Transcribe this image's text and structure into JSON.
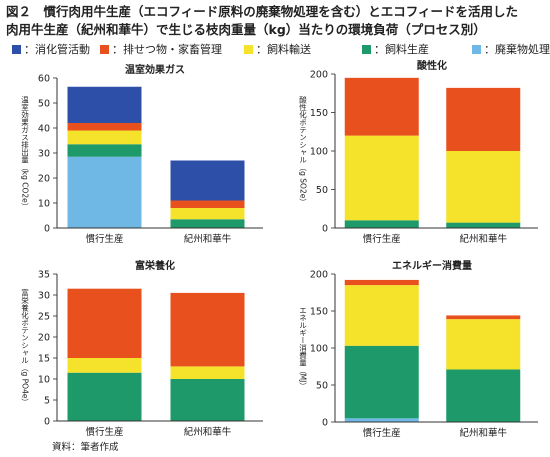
{
  "figure": {
    "title_line1": "図２　慣行肉用牛生産（エコフィード原料の廃棄物処理を含む）とエコフィードを活用した",
    "title_line2": "肉用牛生産（紀州和華牛）で生じる枝肉重量（kg）当たりの環境負荷（プロセス別）",
    "source": "資料：筆者作成"
  },
  "legend": [
    {
      "label": "：消化管活動",
      "color": "#2e4fa8"
    },
    {
      "label": "：排せつ物・家畜管理",
      "color": "#e8501e"
    },
    {
      "label": "：飼料輸送",
      "color": "#f5e22a"
    },
    {
      "label": "：飼料生産",
      "color": "#1e9a6a"
    },
    {
      "label": "：廃棄物処理",
      "color": "#6fb8e6"
    }
  ],
  "chart_data": [
    {
      "type": "bar",
      "stacked": true,
      "title": "温室効果ガス",
      "ylabel": "温室効果ガス排出量（kg CO2e）",
      "ylim": [
        0,
        60
      ],
      "yticks": [
        0,
        10,
        20,
        30,
        40,
        50,
        60
      ],
      "categories": [
        "慣行生産",
        "紀州和華牛"
      ],
      "series": [
        {
          "name": "廃棄物処理",
          "values": [
            28.5,
            0
          ]
        },
        {
          "name": "飼料生産",
          "values": [
            5,
            3.5
          ]
        },
        {
          "name": "飼料輸送",
          "values": [
            5.5,
            4.5
          ]
        },
        {
          "name": "排せつ物・家畜管理",
          "values": [
            3,
            3
          ]
        },
        {
          "name": "消化管活動",
          "values": [
            14.5,
            16
          ]
        }
      ]
    },
    {
      "type": "bar",
      "stacked": true,
      "title": "酸性化",
      "ylabel": "酸性化ポテンシャル（g SO2e）",
      "ylim": [
        0,
        200
      ],
      "yticks": [
        0,
        50,
        100,
        150,
        200
      ],
      "categories": [
        "慣行生産",
        "紀州和華牛"
      ],
      "series": [
        {
          "name": "廃棄物処理",
          "values": [
            0,
            0
          ]
        },
        {
          "name": "飼料生産",
          "values": [
            10,
            7
          ]
        },
        {
          "name": "飼料輸送",
          "values": [
            110,
            93
          ]
        },
        {
          "name": "排せつ物・家畜管理",
          "values": [
            75,
            82
          ]
        },
        {
          "name": "消化管活動",
          "values": [
            0,
            0
          ]
        }
      ]
    },
    {
      "type": "bar",
      "stacked": true,
      "title": "富栄養化",
      "ylabel": "富栄養化ポテンシャル（g PO4e）",
      "ylim": [
        0,
        35
      ],
      "yticks": [
        0,
        5,
        10,
        15,
        20,
        25,
        30,
        35
      ],
      "categories": [
        "慣行生産",
        "紀州和華牛"
      ],
      "series": [
        {
          "name": "廃棄物処理",
          "values": [
            0,
            0
          ]
        },
        {
          "name": "飼料生産",
          "values": [
            11.5,
            10
          ]
        },
        {
          "name": "飼料輸送",
          "values": [
            3.5,
            3
          ]
        },
        {
          "name": "排せつ物・家畜管理",
          "values": [
            16.5,
            17.5
          ]
        },
        {
          "name": "消化管活動",
          "values": [
            0,
            0
          ]
        }
      ]
    },
    {
      "type": "bar",
      "stacked": true,
      "title": "エネルギー消費量",
      "ylabel": "エネルギー消費量（MJ）",
      "ylim": [
        0,
        200
      ],
      "yticks": [
        0,
        50,
        100,
        150,
        200
      ],
      "categories": [
        "慣行生産",
        "紀州和華牛"
      ],
      "series": [
        {
          "name": "廃棄物処理",
          "values": [
            5,
            0
          ]
        },
        {
          "name": "飼料生産",
          "values": [
            98,
            71
          ]
        },
        {
          "name": "飼料輸送",
          "values": [
            82,
            68
          ]
        },
        {
          "name": "排せつ物・家畜管理",
          "values": [
            7,
            5
          ]
        },
        {
          "name": "消化管活動",
          "values": [
            0,
            0
          ]
        }
      ]
    }
  ]
}
